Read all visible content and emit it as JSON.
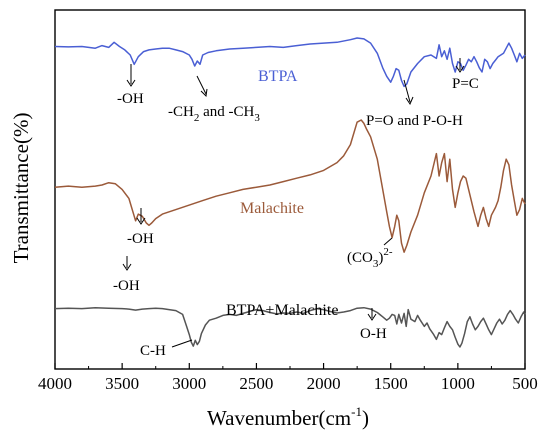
{
  "chart_data": {
    "type": "line",
    "xlabel": "Wavenumber(cm",
    "xlabel_sup": "-1",
    "xlabel_close": ")",
    "ylabel": "Transmittance(%)",
    "xlim": [
      4000,
      500
    ],
    "x_reversed": true,
    "x_ticks": [
      4000,
      3500,
      3000,
      2500,
      2000,
      1500,
      1000,
      500
    ],
    "y_ticks_shown": false,
    "series": [
      {
        "name": "BTPA",
        "color": "#4a5fd4",
        "points": [
          [
            4000,
            0.1
          ],
          [
            3900,
            0.105
          ],
          [
            3800,
            0.1
          ],
          [
            3700,
            0.12
          ],
          [
            3650,
            0.09
          ],
          [
            3600,
            0.11
          ],
          [
            3560,
            0.05
          ],
          [
            3520,
            0.1
          ],
          [
            3480,
            0.14
          ],
          [
            3440,
            0.2
          ],
          [
            3410,
            0.31
          ],
          [
            3380,
            0.22
          ],
          [
            3340,
            0.16
          ],
          [
            3300,
            0.14
          ],
          [
            3250,
            0.13
          ],
          [
            3200,
            0.12
          ],
          [
            3150,
            0.12
          ],
          [
            3100,
            0.14
          ],
          [
            3050,
            0.16
          ],
          [
            3000,
            0.2
          ],
          [
            2980,
            0.25
          ],
          [
            2960,
            0.33
          ],
          [
            2940,
            0.27
          ],
          [
            2920,
            0.31
          ],
          [
            2900,
            0.2
          ],
          [
            2860,
            0.17
          ],
          [
            2800,
            0.15
          ],
          [
            2700,
            0.13
          ],
          [
            2600,
            0.12
          ],
          [
            2500,
            0.11
          ],
          [
            2400,
            0.1
          ],
          [
            2300,
            0.11
          ],
          [
            2200,
            0.09
          ],
          [
            2100,
            0.07
          ],
          [
            2000,
            0.06
          ],
          [
            1900,
            0.05
          ],
          [
            1800,
            0.02
          ],
          [
            1750,
            0.0
          ],
          [
            1700,
            0.01
          ],
          [
            1650,
            0.06
          ],
          [
            1600,
            0.18
          ],
          [
            1560,
            0.35
          ],
          [
            1530,
            0.45
          ],
          [
            1500,
            0.52
          ],
          [
            1480,
            0.45
          ],
          [
            1460,
            0.36
          ],
          [
            1440,
            0.38
          ],
          [
            1420,
            0.5
          ],
          [
            1400,
            0.57
          ],
          [
            1380,
            0.54
          ],
          [
            1350,
            0.4
          ],
          [
            1300,
            0.3
          ],
          [
            1250,
            0.22
          ],
          [
            1200,
            0.2
          ],
          [
            1160,
            0.24
          ],
          [
            1140,
            0.08
          ],
          [
            1120,
            0.22
          ],
          [
            1100,
            0.15
          ],
          [
            1080,
            0.25
          ],
          [
            1060,
            0.12
          ],
          [
            1040,
            0.3
          ],
          [
            1020,
            0.4
          ],
          [
            1000,
            0.28
          ],
          [
            980,
            0.3
          ],
          [
            960,
            0.38
          ],
          [
            940,
            0.32
          ],
          [
            920,
            0.25
          ],
          [
            900,
            0.28
          ],
          [
            880,
            0.22
          ],
          [
            860,
            0.28
          ],
          [
            840,
            0.35
          ],
          [
            820,
            0.4
          ],
          [
            800,
            0.25
          ],
          [
            780,
            0.28
          ],
          [
            760,
            0.36
          ],
          [
            740,
            0.3
          ],
          [
            720,
            0.26
          ],
          [
            700,
            0.22
          ],
          [
            680,
            0.2
          ],
          [
            660,
            0.18
          ],
          [
            640,
            0.12
          ],
          [
            620,
            0.06
          ],
          [
            600,
            0.12
          ],
          [
            580,
            0.2
          ],
          [
            560,
            0.28
          ],
          [
            540,
            0.18
          ],
          [
            520,
            0.24
          ],
          [
            500,
            0.2
          ]
        ]
      },
      {
        "name": "Malachite",
        "color": "#9b5a3a",
        "points": [
          [
            4000,
            0.6
          ],
          [
            3900,
            0.59
          ],
          [
            3800,
            0.6
          ],
          [
            3700,
            0.59
          ],
          [
            3650,
            0.58
          ],
          [
            3600,
            0.56
          ],
          [
            3550,
            0.57
          ],
          [
            3500,
            0.62
          ],
          [
            3450,
            0.7
          ],
          [
            3420,
            0.82
          ],
          [
            3400,
            0.9
          ],
          [
            3380,
            0.84
          ],
          [
            3350,
            0.86
          ],
          [
            3320,
            0.92
          ],
          [
            3300,
            0.94
          ],
          [
            3280,
            0.92
          ],
          [
            3250,
            0.88
          ],
          [
            3200,
            0.84
          ],
          [
            3100,
            0.8
          ],
          [
            3000,
            0.76
          ],
          [
            2900,
            0.72
          ],
          [
            2800,
            0.68
          ],
          [
            2700,
            0.65
          ],
          [
            2600,
            0.62
          ],
          [
            2500,
            0.6
          ],
          [
            2400,
            0.58
          ],
          [
            2300,
            0.55
          ],
          [
            2200,
            0.52
          ],
          [
            2100,
            0.49
          ],
          [
            2000,
            0.45
          ],
          [
            1900,
            0.38
          ],
          [
            1850,
            0.32
          ],
          [
            1800,
            0.22
          ],
          [
            1750,
            0.02
          ],
          [
            1720,
            0.0
          ],
          [
            1700,
            0.03
          ],
          [
            1680,
            0.08
          ],
          [
            1650,
            0.15
          ],
          [
            1600,
            0.35
          ],
          [
            1560,
            0.62
          ],
          [
            1530,
            0.82
          ],
          [
            1510,
            0.95
          ],
          [
            1490,
            1.05
          ],
          [
            1470,
            0.95
          ],
          [
            1455,
            0.85
          ],
          [
            1440,
            0.9
          ],
          [
            1420,
            1.1
          ],
          [
            1400,
            1.18
          ],
          [
            1380,
            1.12
          ],
          [
            1350,
            1.0
          ],
          [
            1300,
            0.85
          ],
          [
            1250,
            0.65
          ],
          [
            1200,
            0.5
          ],
          [
            1160,
            0.3
          ],
          [
            1140,
            0.5
          ],
          [
            1120,
            0.38
          ],
          [
            1100,
            0.3
          ],
          [
            1080,
            0.55
          ],
          [
            1060,
            0.35
          ],
          [
            1040,
            0.62
          ],
          [
            1020,
            0.78
          ],
          [
            1000,
            0.65
          ],
          [
            980,
            0.55
          ],
          [
            960,
            0.5
          ],
          [
            940,
            0.52
          ],
          [
            920,
            0.62
          ],
          [
            880,
            0.82
          ],
          [
            850,
            0.95
          ],
          [
            830,
            0.85
          ],
          [
            810,
            0.78
          ],
          [
            790,
            0.88
          ],
          [
            770,
            0.95
          ],
          [
            750,
            0.85
          ],
          [
            720,
            0.78
          ],
          [
            700,
            0.72
          ],
          [
            680,
            0.6
          ],
          [
            660,
            0.45
          ],
          [
            640,
            0.35
          ],
          [
            620,
            0.4
          ],
          [
            600,
            0.58
          ],
          [
            580,
            0.72
          ],
          [
            560,
            0.85
          ],
          [
            540,
            0.8
          ],
          [
            520,
            0.7
          ],
          [
            500,
            0.75
          ]
        ]
      },
      {
        "name": "BTPA+Malachite",
        "color": "#555555",
        "points": [
          [
            4000,
            1.18
          ],
          [
            3900,
            1.17
          ],
          [
            3800,
            1.18
          ],
          [
            3700,
            1.16
          ],
          [
            3600,
            1.17
          ],
          [
            3500,
            1.18
          ],
          [
            3450,
            1.19
          ],
          [
            3400,
            1.21
          ],
          [
            3350,
            1.19
          ],
          [
            3300,
            1.18
          ],
          [
            3250,
            1.17
          ],
          [
            3200,
            1.18
          ],
          [
            3150,
            1.2
          ],
          [
            3100,
            1.22
          ],
          [
            3050,
            1.3
          ],
          [
            3020,
            1.55
          ],
          [
            3000,
            1.72
          ],
          [
            2985,
            1.88
          ],
          [
            2970,
            1.96
          ],
          [
            2955,
            1.84
          ],
          [
            2940,
            1.93
          ],
          [
            2925,
            1.86
          ],
          [
            2910,
            1.7
          ],
          [
            2880,
            1.52
          ],
          [
            2850,
            1.42
          ],
          [
            2800,
            1.38
          ],
          [
            2750,
            1.32
          ],
          [
            2700,
            1.3
          ],
          [
            2650,
            1.32
          ],
          [
            2600,
            1.28
          ],
          [
            2550,
            1.24
          ],
          [
            2500,
            1.2
          ],
          [
            2450,
            1.22
          ],
          [
            2400,
            1.26
          ],
          [
            2350,
            1.29
          ],
          [
            2300,
            1.27
          ],
          [
            2250,
            1.28
          ],
          [
            2200,
            1.25
          ],
          [
            2150,
            1.28
          ],
          [
            2100,
            1.22
          ],
          [
            2050,
            1.18
          ],
          [
            2000,
            1.2
          ],
          [
            1950,
            1.24
          ],
          [
            1900,
            1.27
          ],
          [
            1850,
            1.25
          ],
          [
            1800,
            1.22
          ],
          [
            1750,
            1.17
          ],
          [
            1700,
            1.16
          ],
          [
            1650,
            1.19
          ],
          [
            1600,
            1.26
          ],
          [
            1560,
            1.35
          ],
          [
            1530,
            1.42
          ],
          [
            1510,
            1.38
          ],
          [
            1490,
            1.3
          ],
          [
            1470,
            1.32
          ],
          [
            1455,
            1.5
          ],
          [
            1440,
            1.3
          ],
          [
            1420,
            1.48
          ],
          [
            1400,
            1.28
          ],
          [
            1385,
            1.55
          ],
          [
            1370,
            1.2
          ],
          [
            1350,
            1.4
          ],
          [
            1320,
            1.45
          ],
          [
            1300,
            1.32
          ],
          [
            1280,
            1.42
          ],
          [
            1250,
            1.55
          ],
          [
            1230,
            1.48
          ],
          [
            1210,
            1.6
          ],
          [
            1180,
            1.72
          ],
          [
            1160,
            1.82
          ],
          [
            1140,
            1.68
          ],
          [
            1120,
            1.72
          ],
          [
            1100,
            1.58
          ],
          [
            1080,
            1.45
          ],
          [
            1060,
            1.55
          ],
          [
            1040,
            1.62
          ],
          [
            1020,
            1.78
          ],
          [
            1000,
            1.92
          ],
          [
            985,
            1.98
          ],
          [
            970,
            1.9
          ],
          [
            950,
            1.7
          ],
          [
            930,
            1.45
          ],
          [
            910,
            1.35
          ],
          [
            890,
            1.5
          ],
          [
            870,
            1.62
          ],
          [
            850,
            1.55
          ],
          [
            830,
            1.45
          ],
          [
            810,
            1.38
          ],
          [
            790,
            1.5
          ],
          [
            770,
            1.62
          ],
          [
            750,
            1.72
          ],
          [
            730,
            1.6
          ],
          [
            710,
            1.48
          ],
          [
            690,
            1.4
          ],
          [
            670,
            1.5
          ],
          [
            650,
            1.42
          ],
          [
            630,
            1.3
          ],
          [
            610,
            1.22
          ],
          [
            590,
            1.3
          ],
          [
            570,
            1.4
          ],
          [
            550,
            1.48
          ],
          [
            530,
            1.35
          ],
          [
            510,
            1.25
          ],
          [
            500,
            1.3
          ]
        ]
      }
    ],
    "series_labels": [
      {
        "text": "BTPA",
        "series": 0
      },
      {
        "text": "Malachite",
        "series": 1
      },
      {
        "text": "BTPA+Malachite",
        "series": 2
      }
    ],
    "annotations": [
      {
        "id": "btpa-oh",
        "text": "-OH"
      },
      {
        "id": "btpa-ch",
        "text_a": "-CH",
        "sub_a": "2",
        "text_b": " and -CH",
        "sub_b": "3"
      },
      {
        "id": "btpa-pc",
        "text": "P=C"
      },
      {
        "id": "btpa-po",
        "text": "P=O and P-O-H"
      },
      {
        "id": "mal-oh",
        "text": "-OH"
      },
      {
        "id": "mal-co3",
        "text_a": "(CO",
        "sub": "3",
        "text_b": ")",
        "sup": "2-"
      },
      {
        "id": "mix-oh1",
        "text": "-OH"
      },
      {
        "id": "mix-ch",
        "text": "C-H"
      },
      {
        "id": "mix-oh2",
        "text": "O-H"
      }
    ]
  }
}
